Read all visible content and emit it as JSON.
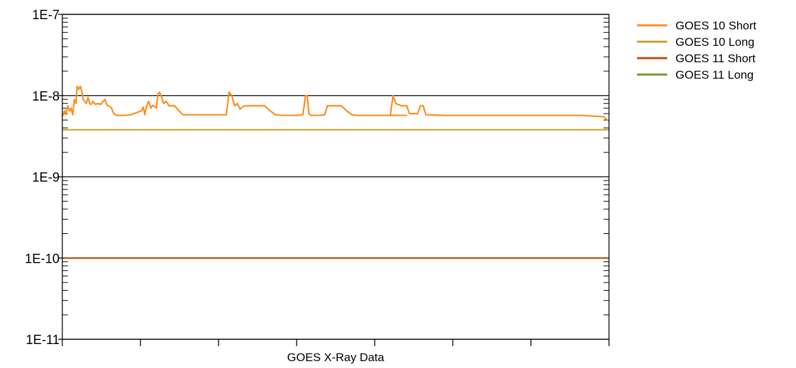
{
  "chart_data": {
    "type": "line",
    "title": "",
    "xlabel": "GOES X-Ray Data",
    "ylabel": "",
    "y_scale": "log",
    "ylim": [
      1e-11,
      1e-07
    ],
    "xlim": [
      0,
      1
    ],
    "grid": "horizontal at decades",
    "legend_position": "top-right",
    "y_tick_labels": [
      "1E-7",
      "1E-8",
      "1E-9",
      "1E-10",
      "1E-11"
    ],
    "y_tick_values": [
      1e-07,
      1e-08,
      1e-09,
      1e-10,
      1e-11
    ],
    "x_tick_count": 8,
    "series": [
      {
        "name": "GOES 10 Short",
        "color": "#ff8c1a",
        "x": [
          0.0,
          0.004,
          0.006,
          0.01,
          0.013,
          0.016,
          0.019,
          0.022,
          0.025,
          0.027,
          0.03,
          0.033,
          0.036,
          0.038,
          0.041,
          0.044,
          0.047,
          0.05,
          0.053,
          0.056,
          0.06,
          0.065,
          0.07,
          0.075,
          0.078,
          0.082,
          0.086,
          0.09,
          0.093,
          0.097,
          0.1,
          0.115,
          0.125,
          0.145,
          0.148,
          0.151,
          0.154,
          0.158,
          0.162,
          0.165,
          0.168,
          0.172,
          0.175,
          0.178,
          0.182,
          0.185,
          0.19,
          0.195,
          0.205,
          0.22,
          0.25,
          0.275,
          0.3,
          0.305,
          0.31,
          0.315,
          0.32,
          0.325,
          0.33,
          0.335,
          0.34,
          0.35,
          0.37,
          0.38,
          0.39,
          0.4,
          0.41,
          0.43,
          0.44,
          0.445,
          0.448,
          0.451,
          0.455,
          0.46,
          0.47,
          0.48,
          0.485,
          0.49,
          0.495,
          0.51,
          0.52,
          0.53,
          0.54,
          0.56,
          0.6,
          0.63,
          0.6,
          0.605,
          0.61,
          0.62,
          0.63,
          0.635,
          0.64,
          0.65,
          0.655,
          0.66,
          0.665,
          0.7,
          0.75,
          0.8,
          0.85,
          0.88,
          0.9,
          0.93,
          0.95,
          0.97,
          0.99,
          1.0
        ],
        "y": [
          5.5e-09,
          6.5e-09,
          5.8e-09,
          7.5e-09,
          6.5e-09,
          7e-09,
          5.8e-09,
          9e-09,
          8e-09,
          1.3e-08,
          1.2e-08,
          1.3e-08,
          1.1e-08,
          9e-09,
          8.5e-09,
          8e-09,
          9.5e-09,
          8e-09,
          7.8e-09,
          8.5e-09,
          7.8e-09,
          8e-09,
          7.8e-09,
          8.5e-09,
          9e-09,
          7.6e-09,
          7.4e-09,
          7e-09,
          6.2e-09,
          5.8e-09,
          5.7e-09,
          5.7e-09,
          5.8e-09,
          6.5e-09,
          7.2e-09,
          5.8e-09,
          7.5e-09,
          8.5e-09,
          7e-09,
          7.6e-09,
          7.4e-09,
          7e-09,
          1.05e-08,
          1.1e-08,
          9.5e-09,
          8e-09,
          8.5e-09,
          7.5e-09,
          7.5e-09,
          5.8e-09,
          5.8e-09,
          5.8e-09,
          5.8e-09,
          1.1e-08,
          1e-08,
          7.5e-09,
          8e-09,
          6.8e-09,
          7.3e-09,
          7.5e-09,
          7.5e-09,
          7.5e-09,
          7.5e-09,
          6.5e-09,
          5.8e-09,
          5.7e-09,
          5.7e-09,
          5.7e-09,
          5.8e-09,
          1e-08,
          1e-08,
          6e-09,
          5.7e-09,
          5.7e-09,
          5.7e-09,
          5.8e-09,
          7.5e-09,
          7.5e-09,
          7.5e-09,
          7.5e-09,
          6.5e-09,
          5.8e-09,
          5.7e-09,
          5.7e-09,
          5.7e-09,
          5.7e-09,
          5.7e-09,
          1e-08,
          8e-09,
          7.5e-09,
          7.5e-09,
          6e-09,
          6e-09,
          6e-09,
          7.5e-09,
          7.5e-09,
          5.8e-09,
          5.7e-09,
          5.7e-09,
          5.7e-09,
          5.7e-09,
          5.7e-09,
          5.7e-09,
          5.7e-09,
          5.7e-09,
          5.6e-09,
          5.5e-09,
          4.8e-09
        ]
      },
      {
        "name": "GOES 10 Long",
        "color": "#c9a227",
        "x": [
          0,
          1
        ],
        "y": [
          3.8e-09,
          3.8e-09
        ]
      },
      {
        "name": "GOES 11 Short",
        "color": "#c04a12",
        "x": [
          0,
          1
        ],
        "y": [
          1e-10,
          1e-10
        ]
      },
      {
        "name": "GOES 11 Long",
        "color": "#6e9a2a",
        "x": [
          0,
          1
        ],
        "y": [
          1e-10,
          1e-10
        ]
      }
    ]
  }
}
